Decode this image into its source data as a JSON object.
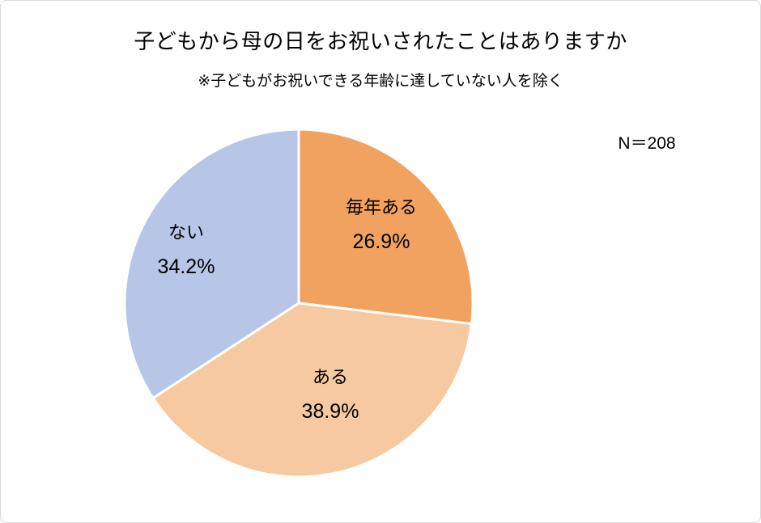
{
  "header": {
    "title": "子どもから母の日をお祝いされたことはありますか",
    "subtitle": "※子どもがお祝いできる年齢に達していない人を除く",
    "sample_size_label": "N＝208"
  },
  "chart_data": {
    "type": "pie",
    "title": "子どもから母の日をお祝いされたことはありますか",
    "subtitle": "※子どもがお祝いできる年齢に達していない人を除く",
    "sample_size": 208,
    "start_angle_deg": 0,
    "direction": "clockwise",
    "stroke_color": "#ffffff",
    "slices": [
      {
        "label": "毎年ある",
        "value": 26.9,
        "percent_label": "26.9%",
        "color": "#F1A25E"
      },
      {
        "label": "ある",
        "value": 38.9,
        "percent_label": "38.9%",
        "color": "#F7C9A0"
      },
      {
        "label": "ない",
        "value": 34.2,
        "percent_label": "34.2%",
        "color": "#B7C5E6"
      }
    ]
  }
}
